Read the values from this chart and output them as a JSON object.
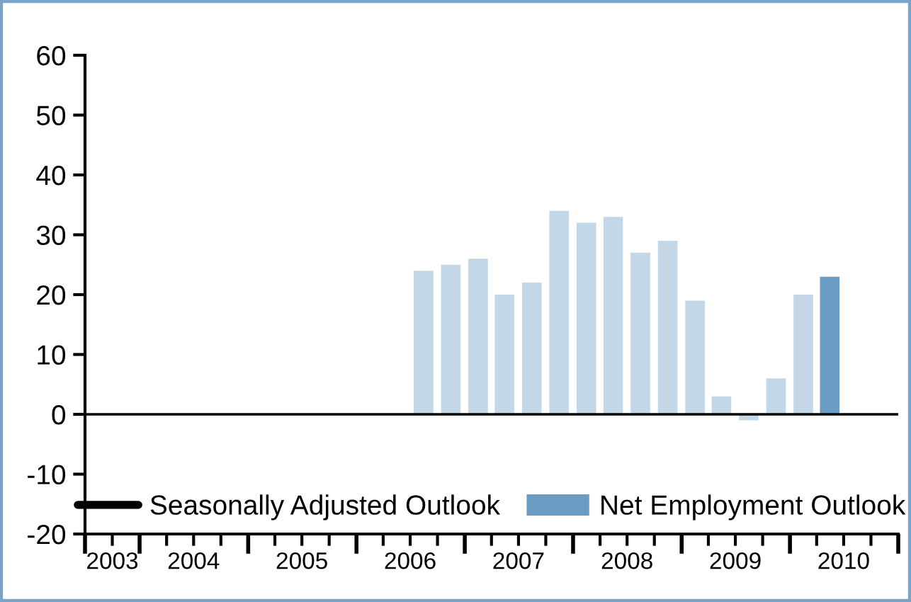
{
  "chart_data": {
    "type": "bar",
    "x": [
      "2006-08-15",
      "2006-11-15",
      "2007-02-15",
      "2007-05-15",
      "2007-08-15",
      "2007-11-15",
      "2008-02-15",
      "2008-05-15",
      "2008-08-15",
      "2008-11-15",
      "2009-02-15",
      "2009-05-15",
      "2009-08-15",
      "2009-11-15",
      "2010-02-15",
      "2010-05-15"
    ],
    "series": [
      {
        "name": "Seasonally Adjusted Outlook",
        "type": "line",
        "color": "#000000",
        "values": [
          null,
          null,
          null,
          null,
          null,
          null,
          null,
          null,
          null,
          null,
          null,
          null,
          null,
          null,
          null,
          null
        ]
      },
      {
        "name": "Net Employment Outlook",
        "color": "#6a9bc3",
        "colors": [
          "#c4d7e7",
          "#c4d7e7",
          "#c4d7e7",
          "#c4d7e7",
          "#c4d7e7",
          "#c4d7e7",
          "#c4d7e7",
          "#c4d7e7",
          "#c4d7e7",
          "#c4d7e7",
          "#c4d7e7",
          "#c4d7e7",
          "#c4d7e7",
          "#c4d7e7",
          "#c4d7e7",
          "#6a9bc3"
        ],
        "values": [
          24,
          25,
          26,
          20,
          22,
          34,
          32,
          33,
          27,
          29,
          19,
          3,
          -1,
          6,
          20,
          23
        ]
      }
    ],
    "xlim": [
      "2003-07-01",
      "2011-01-01"
    ],
    "xticks": [
      {
        "value": "2003-07-01",
        "label": null
      },
      {
        "value": "2003-10-01",
        "label": "2003"
      },
      {
        "value": "2004-01-01",
        "label": null
      },
      {
        "value": "2004-04-01",
        "label": null
      },
      {
        "value": "2004-07-01",
        "label": "2004"
      },
      {
        "value": "2004-10-01",
        "label": null
      },
      {
        "value": "2005-01-01",
        "label": null
      },
      {
        "value": "2005-04-01",
        "label": null
      },
      {
        "value": "2005-07-01",
        "label": "2005"
      },
      {
        "value": "2005-10-01",
        "label": null
      },
      {
        "value": "2006-01-01",
        "label": null
      },
      {
        "value": "2006-04-01",
        "label": null
      },
      {
        "value": "2006-07-01",
        "label": "2006"
      },
      {
        "value": "2006-10-01",
        "label": null
      },
      {
        "value": "2007-01-01",
        "label": null
      },
      {
        "value": "2007-04-01",
        "label": null
      },
      {
        "value": "2007-07-01",
        "label": "2007"
      },
      {
        "value": "2007-10-01",
        "label": null
      },
      {
        "value": "2008-01-01",
        "label": null
      },
      {
        "value": "2008-04-01",
        "label": null
      },
      {
        "value": "2008-07-01",
        "label": "2008"
      },
      {
        "value": "2008-10-01",
        "label": null
      },
      {
        "value": "2009-01-01",
        "label": null
      },
      {
        "value": "2009-04-01",
        "label": null
      },
      {
        "value": "2009-07-01",
        "label": "2009"
      },
      {
        "value": "2009-10-01",
        "label": null
      },
      {
        "value": "2010-01-01",
        "label": null
      },
      {
        "value": "2010-04-01",
        "label": null
      },
      {
        "value": "2010-07-01",
        "label": "2010"
      },
      {
        "value": "2010-10-01",
        "label": null
      },
      {
        "value": "2011-01-01",
        "label": null
      }
    ],
    "ylim": [
      -20,
      60
    ],
    "yticks": [
      -20,
      -10,
      0,
      10,
      20,
      30,
      40,
      50,
      60
    ],
    "ref_lines": [
      {
        "axis": "y",
        "value": 0,
        "color": "#000000"
      }
    ],
    "grid": false,
    "legend": "bottom"
  }
}
